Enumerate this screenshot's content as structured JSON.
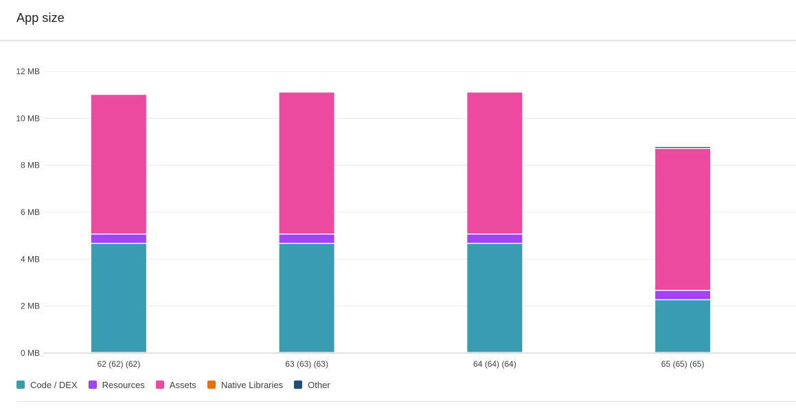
{
  "card": {
    "title": "App size"
  },
  "chart_data": {
    "type": "bar",
    "stacked": true,
    "categories": [
      "62 (62) (62)",
      "63 (63) (63)",
      "64 (64) (64)",
      "65 (65) (65)"
    ],
    "y_unit": "MB",
    "ylim": [
      0,
      12
    ],
    "yticks": [
      0,
      2,
      4,
      6,
      8,
      10,
      12
    ],
    "ytick_labels": [
      "0 MB",
      "2 MB",
      "4 MB",
      "6 MB",
      "8 MB",
      "10 MB",
      "12 MB"
    ],
    "grid": true,
    "legend_position": "bottom-left",
    "series": [
      {
        "name": "Code / DEX",
        "color": "#3a9cb0",
        "values": [
          4.65,
          4.65,
          4.65,
          2.25
        ]
      },
      {
        "name": "Resources",
        "color": "#a142f4",
        "values": [
          0.4,
          0.4,
          0.4,
          0.4
        ]
      },
      {
        "name": "Assets",
        "color": "#ec4a9f",
        "values": [
          5.95,
          6.05,
          6.05,
          6.05
        ]
      },
      {
        "name": "Native Libraries",
        "color": "#e8710a",
        "values": [
          0,
          0,
          0,
          0
        ]
      },
      {
        "name": "Other",
        "color": "#1f4e7a",
        "values": [
          0,
          0,
          0,
          0.08
        ]
      }
    ]
  }
}
